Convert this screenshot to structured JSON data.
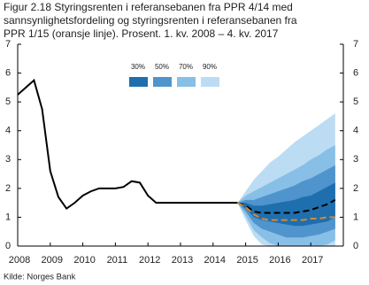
{
  "chart_data": {
    "type": "fan",
    "title": [
      "Figur 2.18 Styringsrenten i referansebanen fra PPR 4/14 med",
      "sannsynlighetsfordeling og styringsrenten i referansebanen fra",
      "PPR 1/15 (oransje linje). Prosent. 1. kv. 2008 – 4. kv. 2017"
    ],
    "source": "Kilde: Norges Bank",
    "xlim": [
      2008,
      2018
    ],
    "xticks": [
      2008,
      2009,
      2010,
      2011,
      2012,
      2013,
      2014,
      2015,
      2016,
      2017
    ],
    "ylim": [
      0,
      7
    ],
    "yticks": [
      0,
      1,
      2,
      3,
      4,
      5,
      6,
      7
    ],
    "fan_x": [
      2014.75,
      2015,
      2015.25,
      2015.5,
      2015.75,
      2016,
      2016.25,
      2016.5,
      2016.75,
      2017,
      2017.25,
      2017.5,
      2017.75
    ],
    "bands": [
      {
        "name": "30%",
        "color": "#1f6fae",
        "lower": [
          1.5,
          1.3,
          1.0,
          0.9,
          0.85,
          0.8,
          0.75,
          0.7,
          0.7,
          0.75,
          0.8,
          0.85,
          1.0
        ],
        "upper": [
          1.5,
          1.5,
          1.4,
          1.4,
          1.45,
          1.5,
          1.55,
          1.6,
          1.7,
          1.75,
          1.9,
          2.05,
          2.2
        ]
      },
      {
        "name": "50%",
        "color": "#4f94cd",
        "lower": [
          1.5,
          1.2,
          0.8,
          0.6,
          0.5,
          0.4,
          0.3,
          0.3,
          0.3,
          0.35,
          0.4,
          0.5,
          0.6
        ],
        "upper": [
          1.5,
          1.6,
          1.6,
          1.7,
          1.8,
          1.9,
          2.0,
          2.1,
          2.25,
          2.35,
          2.5,
          2.65,
          2.8
        ]
      },
      {
        "name": "70%",
        "color": "#88bfe6",
        "lower": [
          1.5,
          1.05,
          0.55,
          0.3,
          0.1,
          0,
          0,
          0,
          0,
          0,
          0,
          0.05,
          0.2
        ],
        "upper": [
          1.5,
          1.75,
          1.9,
          2.05,
          2.2,
          2.35,
          2.5,
          2.65,
          2.8,
          3.0,
          3.15,
          3.35,
          3.5
        ]
      },
      {
        "name": "90%",
        "color": "#bcdcf3",
        "lower": [
          1.5,
          0.9,
          0.35,
          0.05,
          0,
          0,
          0,
          0,
          0,
          0,
          0,
          0,
          0
        ],
        "upper": [
          1.5,
          1.9,
          2.3,
          2.6,
          2.9,
          3.1,
          3.35,
          3.6,
          3.8,
          4.0,
          4.2,
          4.4,
          4.6
        ]
      }
    ],
    "series": [
      {
        "color": "#000000",
        "dash": false,
        "x": [
          2008,
          2008.25,
          2008.5,
          2008.75,
          2009,
          2009.25,
          2009.5,
          2009.75,
          2010,
          2010.25,
          2010.5,
          2010.75,
          2011,
          2011.25,
          2011.5,
          2011.75,
          2012,
          2012.25,
          2012.5,
          2012.75,
          2013,
          2013.25,
          2013.5,
          2013.75,
          2014,
          2014.25,
          2014.5,
          2014.75
        ],
        "values": [
          5.25,
          5.5,
          5.75,
          4.75,
          2.6,
          1.7,
          1.3,
          1.5,
          1.75,
          1.9,
          2.0,
          2.0,
          2.0,
          2.05,
          2.25,
          2.2,
          1.75,
          1.5,
          1.5,
          1.5,
          1.5,
          1.5,
          1.5,
          1.5,
          1.5,
          1.5,
          1.5,
          1.5
        ]
      },
      {
        "color": "#000000",
        "dash": true,
        "x": [
          2014.75,
          2015,
          2015.25,
          2015.5,
          2015.75,
          2016,
          2016.25,
          2016.5,
          2016.75,
          2017,
          2017.25,
          2017.5,
          2017.75
        ],
        "values": [
          1.5,
          1.4,
          1.2,
          1.15,
          1.15,
          1.15,
          1.15,
          1.15,
          1.2,
          1.25,
          1.35,
          1.45,
          1.6
        ]
      },
      {
        "color": "#d4893a",
        "dash": true,
        "x": [
          2014.75,
          2015,
          2015.25,
          2015.5,
          2015.75,
          2016,
          2016.25,
          2016.5,
          2016.75,
          2017,
          2017.25,
          2017.5,
          2017.75
        ],
        "values": [
          1.5,
          1.35,
          1.1,
          0.95,
          0.9,
          0.9,
          0.9,
          0.9,
          0.9,
          0.95,
          0.95,
          1.0,
          1.0
        ]
      }
    ]
  }
}
